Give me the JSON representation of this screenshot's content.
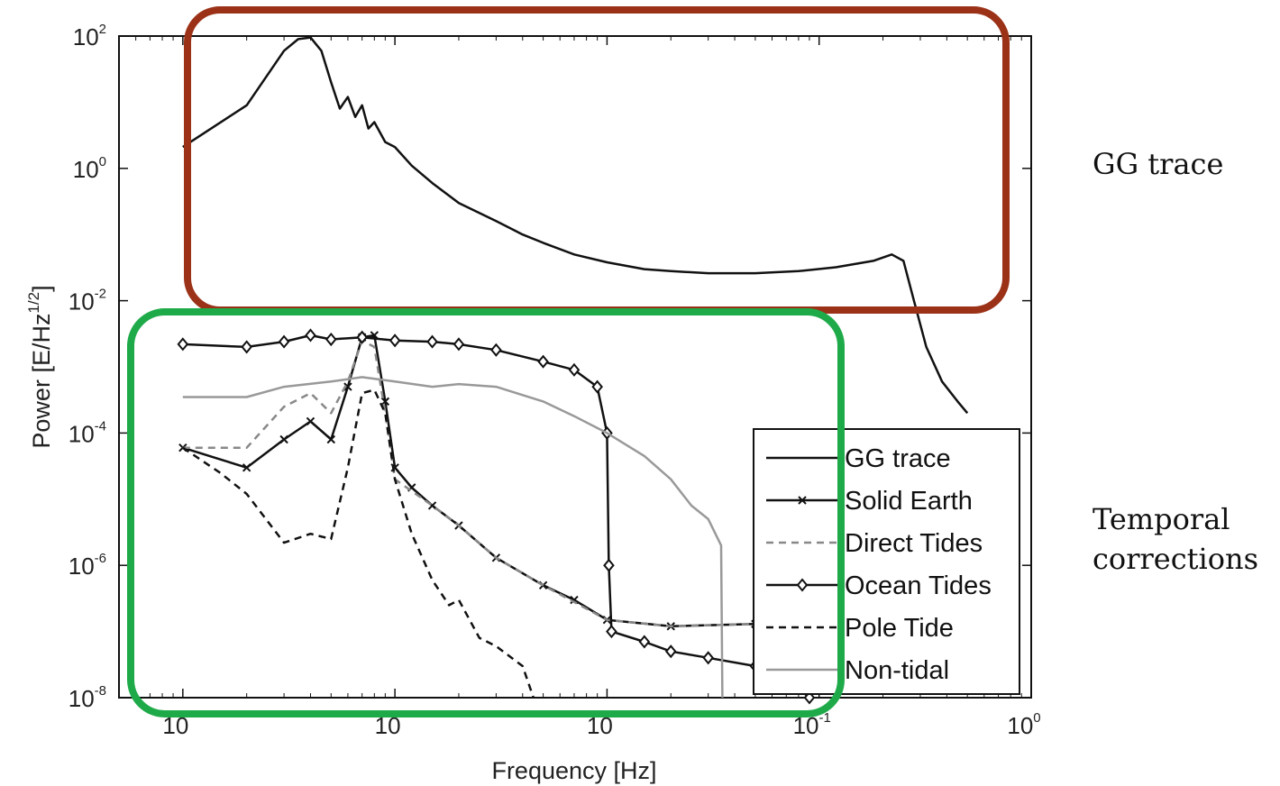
{
  "annotations": {
    "gg_box_label": "GG trace",
    "temporal_label_line1": "Temporal",
    "temporal_label_line2": "corrections",
    "gg_box_color": "#9b3218",
    "temporal_box_color": "#1faa4a"
  },
  "chart_data": {
    "type": "line",
    "title": "",
    "xlabel": "Frequency [Hz]",
    "ylabel": "Power [E/Hz^(1/2)]",
    "x_scale": "log",
    "y_scale": "log",
    "xlim": [
      5e-05,
      1
    ],
    "ylim": [
      1e-08,
      100
    ],
    "grid": false,
    "legend_position": "lower-right",
    "x_ticks": [
      {
        "value": 0.0001,
        "base": "10",
        "exp": ""
      },
      {
        "value": 0.001,
        "base": "10",
        "exp": ""
      },
      {
        "value": 0.01,
        "base": "10",
        "exp": ""
      },
      {
        "value": 0.1,
        "base": "10",
        "exp": "-1"
      },
      {
        "value": 1,
        "base": "10",
        "exp": "0"
      }
    ],
    "y_ticks": [
      {
        "value": 1e-08,
        "base": "10",
        "exp": "-8"
      },
      {
        "value": 1e-06,
        "base": "10",
        "exp": "-6"
      },
      {
        "value": 0.0001,
        "base": "10",
        "exp": "-4"
      },
      {
        "value": 0.01,
        "base": "10",
        "exp": "-2"
      },
      {
        "value": 1,
        "base": "10",
        "exp": "0"
      },
      {
        "value": 100,
        "base": "10",
        "exp": "2"
      }
    ],
    "series": [
      {
        "name": "GG trace",
        "style": "solid",
        "color": "#111111",
        "marker": "none",
        "points": [
          [
            0.0001,
            2.1
          ],
          [
            0.0002,
            9
          ],
          [
            0.0003,
            60
          ],
          [
            0.00035,
            90
          ],
          [
            0.0004,
            95
          ],
          [
            0.00045,
            60
          ],
          [
            0.0005,
            20
          ],
          [
            0.00055,
            8
          ],
          [
            0.0006,
            12
          ],
          [
            0.00065,
            6
          ],
          [
            0.0007,
            9
          ],
          [
            0.00075,
            4
          ],
          [
            0.0008,
            5
          ],
          [
            0.0009,
            2.5
          ],
          [
            0.001,
            2.1
          ],
          [
            0.0012,
            1.1
          ],
          [
            0.0015,
            0.6
          ],
          [
            0.002,
            0.3
          ],
          [
            0.003,
            0.16
          ],
          [
            0.004,
            0.1
          ],
          [
            0.005,
            0.075
          ],
          [
            0.007,
            0.05
          ],
          [
            0.01,
            0.038
          ],
          [
            0.015,
            0.03
          ],
          [
            0.02,
            0.028
          ],
          [
            0.03,
            0.026
          ],
          [
            0.05,
            0.026
          ],
          [
            0.08,
            0.028
          ],
          [
            0.12,
            0.032
          ],
          [
            0.18,
            0.04
          ],
          [
            0.22,
            0.05
          ],
          [
            0.25,
            0.04
          ],
          [
            0.28,
            0.01
          ],
          [
            0.32,
            0.002
          ],
          [
            0.38,
            0.0006
          ],
          [
            0.45,
            0.0003
          ],
          [
            0.5,
            0.0002
          ]
        ]
      },
      {
        "name": "Solid Earth",
        "style": "solid",
        "color": "#111111",
        "marker": "x",
        "points": [
          [
            0.0001,
            6e-05
          ],
          [
            0.0002,
            3e-05
          ],
          [
            0.0003,
            8e-05
          ],
          [
            0.0004,
            0.00015
          ],
          [
            0.0005,
            8e-05
          ],
          [
            0.0006,
            0.0005
          ],
          [
            0.0007,
            0.0028
          ],
          [
            0.0008,
            0.003
          ],
          [
            0.0009,
            0.0003
          ],
          [
            0.001,
            3e-05
          ],
          [
            0.0012,
            1.5e-05
          ],
          [
            0.0015,
            8e-06
          ],
          [
            0.002,
            4e-06
          ],
          [
            0.003,
            1.3e-06
          ],
          [
            0.005,
            5e-07
          ],
          [
            0.007,
            3e-07
          ],
          [
            0.01,
            1.5e-07
          ],
          [
            0.02,
            1.2e-07
          ],
          [
            0.05,
            1.3e-07
          ],
          [
            0.1,
            1.4e-07
          ]
        ]
      },
      {
        "name": "Direct Tides",
        "style": "dashed",
        "color": "#888888",
        "marker": "none",
        "points": [
          [
            0.0001,
            6e-05
          ],
          [
            0.0002,
            6e-05
          ],
          [
            0.0003,
            0.00025
          ],
          [
            0.0004,
            0.0004
          ],
          [
            0.0005,
            0.0002
          ],
          [
            0.0006,
            0.0006
          ],
          [
            0.0007,
            0.0025
          ],
          [
            0.0008,
            0.002
          ],
          [
            0.0009,
            0.0002
          ],
          [
            0.001,
            2e-05
          ],
          [
            0.0015,
            8e-06
          ],
          [
            0.002,
            4e-06
          ],
          [
            0.003,
            1.3e-06
          ],
          [
            0.005,
            5e-07
          ],
          [
            0.01,
            1.5e-07
          ],
          [
            0.02,
            1.2e-07
          ],
          [
            0.05,
            1.3e-07
          ],
          [
            0.1,
            1.3e-07
          ]
        ]
      },
      {
        "name": "Ocean Tides",
        "style": "solid",
        "color": "#111111",
        "marker": "diamond",
        "points": [
          [
            0.0001,
            0.0022
          ],
          [
            0.0002,
            0.002
          ],
          [
            0.0003,
            0.0024
          ],
          [
            0.0004,
            0.003
          ],
          [
            0.0005,
            0.0026
          ],
          [
            0.0007,
            0.0028
          ],
          [
            0.001,
            0.0025
          ],
          [
            0.0015,
            0.0024
          ],
          [
            0.002,
            0.0022
          ],
          [
            0.003,
            0.0018
          ],
          [
            0.005,
            0.0012
          ],
          [
            0.007,
            0.0009
          ],
          [
            0.009,
            0.0005
          ],
          [
            0.01,
            0.0001
          ],
          [
            0.0102,
            1e-06
          ],
          [
            0.0105,
            1e-07
          ],
          [
            0.015,
            7e-08
          ],
          [
            0.02,
            5e-08
          ],
          [
            0.03,
            4e-08
          ],
          [
            0.05,
            3e-08
          ],
          [
            0.07,
            2e-08
          ],
          [
            0.09,
            1e-08
          ]
        ]
      },
      {
        "name": "Pole Tide",
        "style": "dashed",
        "color": "#111111",
        "marker": "none",
        "points": [
          [
            0.0001,
            6e-05
          ],
          [
            0.00015,
            2.5e-05
          ],
          [
            0.0002,
            1.2e-05
          ],
          [
            0.0003,
            2.2e-06
          ],
          [
            0.0004,
            3e-06
          ],
          [
            0.0005,
            2.5e-06
          ],
          [
            0.0006,
            3e-05
          ],
          [
            0.0007,
            0.0004
          ],
          [
            0.0008,
            0.00045
          ],
          [
            0.0009,
            0.0002
          ],
          [
            0.001,
            2e-05
          ],
          [
            0.0012,
            3e-06
          ],
          [
            0.0015,
            6e-07
          ],
          [
            0.0018,
            2.5e-07
          ],
          [
            0.002,
            3e-07
          ],
          [
            0.0025,
            8e-08
          ],
          [
            0.003,
            6e-08
          ],
          [
            0.004,
            3e-08
          ],
          [
            0.0045,
            1e-08
          ]
        ]
      },
      {
        "name": "Non-tidal",
        "style": "solid",
        "color": "#999999",
        "marker": "none",
        "points": [
          [
            0.0001,
            0.00035
          ],
          [
            0.0002,
            0.00035
          ],
          [
            0.0003,
            0.0005
          ],
          [
            0.0005,
            0.0006
          ],
          [
            0.0007,
            0.0007
          ],
          [
            0.001,
            0.0006
          ],
          [
            0.0015,
            0.0005
          ],
          [
            0.002,
            0.00055
          ],
          [
            0.003,
            0.0005
          ],
          [
            0.005,
            0.0003
          ],
          [
            0.007,
            0.00018
          ],
          [
            0.01,
            0.0001
          ],
          [
            0.015,
            4.5e-05
          ],
          [
            0.02,
            2e-05
          ],
          [
            0.025,
            8e-06
          ],
          [
            0.03,
            5e-06
          ],
          [
            0.0345,
            2e-06
          ],
          [
            0.035,
            1e-08
          ]
        ]
      }
    ]
  }
}
